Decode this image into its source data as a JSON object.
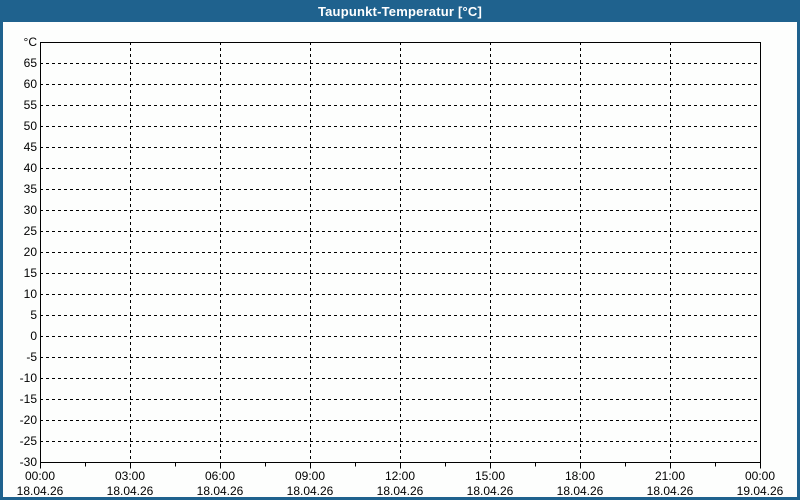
{
  "window": {
    "title": "Taupunkt-Temperatur [°C]"
  },
  "colors": {
    "frame_blue": "#1F628E",
    "plot_background": "#FDFEFD",
    "grid_line": "#000000",
    "label_text": "#000000",
    "title_text": "#FFFFFF"
  },
  "chart_data": {
    "type": "line",
    "title": "Taupunkt-Temperatur [°C]",
    "xlabel": "",
    "ylabel": "°C",
    "ylim": [
      -30,
      70
    ],
    "y_ticks": [
      65,
      60,
      55,
      50,
      45,
      40,
      35,
      30,
      25,
      20,
      15,
      10,
      5,
      0,
      -5,
      -10,
      -15,
      -20,
      -25,
      -30
    ],
    "x_ticks": [
      {
        "time": "00:00",
        "date": "18.04.26"
      },
      {
        "time": "03:00",
        "date": "18.04.26"
      },
      {
        "time": "06:00",
        "date": "18.04.26"
      },
      {
        "time": "09:00",
        "date": "18.04.26"
      },
      {
        "time": "12:00",
        "date": "18.04.26"
      },
      {
        "time": "15:00",
        "date": "18.04.26"
      },
      {
        "time": "18:00",
        "date": "18.04.26"
      },
      {
        "time": "21:00",
        "date": "18.04.26"
      },
      {
        "time": "00:00",
        "date": "19.04.26"
      }
    ],
    "x_minor_ticks_between_majors": 1,
    "grid": "dashed",
    "legend": "none",
    "series": []
  }
}
